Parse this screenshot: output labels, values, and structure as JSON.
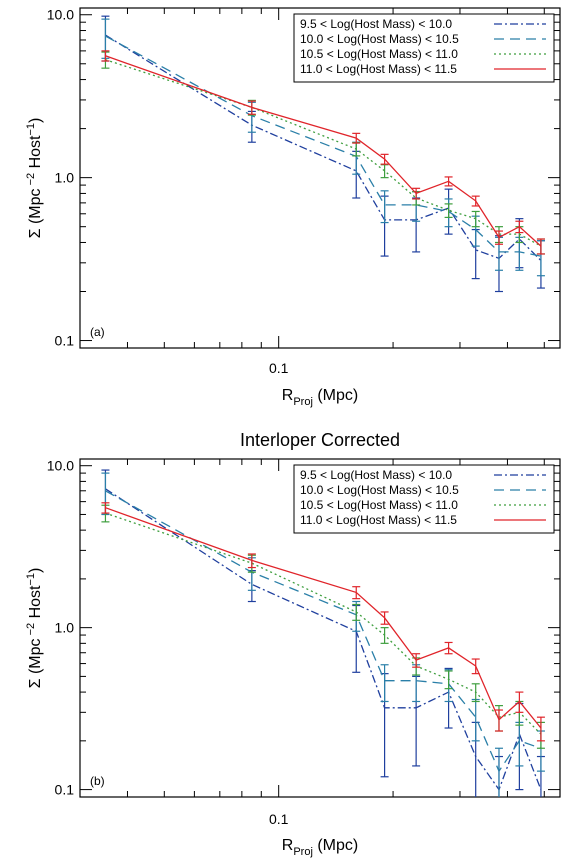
{
  "chart_data": [
    {
      "type": "line",
      "title": "",
      "panel_label": "(a)",
      "xlabel": {
        "main": "R",
        "sub": "Proj",
        "rest": " (Mpc)"
      },
      "ylabel": {
        "main": "Σ (Mpc",
        "sup1": " −2",
        "mid": " Host",
        "sup2": "−1",
        "end": ")"
      },
      "xscale": "log",
      "yscale": "log",
      "xlim": [
        0.03,
        0.55
      ],
      "ylim": [
        0.09,
        11.0
      ],
      "x_ticks": [
        {
          "value": 0.1,
          "label": "0.1"
        }
      ],
      "y_ticks": [
        {
          "value": 0.1,
          "label": "0.1"
        },
        {
          "value": 1.0,
          "label": "1.0"
        },
        {
          "value": 10.0,
          "label": "10.0"
        }
      ],
      "legend_position": "top-right",
      "series": [
        {
          "name": "9.5 < Log(Host Mass) < 10.0",
          "color": "#1f3f9e",
          "dash": "dashdot",
          "x": [
            0.035,
            0.085,
            0.16,
            0.19,
            0.23,
            0.28,
            0.33,
            0.38,
            0.43,
            0.49
          ],
          "y": [
            7.5,
            2.1,
            1.1,
            0.55,
            0.55,
            0.65,
            0.36,
            0.32,
            0.42,
            0.31
          ],
          "err": [
            2.3,
            0.45,
            0.35,
            0.22,
            0.2,
            0.2,
            0.12,
            0.12,
            0.14,
            0.1
          ]
        },
        {
          "name": "10.0 < Log(Host Mass) < 10.5",
          "color": "#2a7fa8",
          "dash": "dashed",
          "x": [
            0.035,
            0.085,
            0.16,
            0.19,
            0.23,
            0.28,
            0.33,
            0.38,
            0.43,
            0.49
          ],
          "y": [
            7.4,
            2.4,
            1.35,
            0.68,
            0.68,
            0.62,
            0.48,
            0.35,
            0.35,
            0.33
          ],
          "err": [
            2.0,
            0.5,
            0.3,
            0.15,
            0.14,
            0.12,
            0.1,
            0.08,
            0.08,
            0.08
          ]
        },
        {
          "name": "10.5 < Log(Host Mass) < 11.0",
          "color": "#3e9e3e",
          "dash": "dotted",
          "x": [
            0.035,
            0.085,
            0.16,
            0.19,
            0.23,
            0.28,
            0.33,
            0.38,
            0.43,
            0.49
          ],
          "y": [
            5.3,
            2.7,
            1.5,
            1.1,
            0.75,
            0.63,
            0.56,
            0.45,
            0.45,
            0.38
          ],
          "err": [
            0.6,
            0.28,
            0.14,
            0.1,
            0.07,
            0.06,
            0.06,
            0.05,
            0.05,
            0.04
          ]
        },
        {
          "name": "11.0 < Log(Host Mass) < 11.5",
          "color": "#e0242a",
          "dash": "solid",
          "x": [
            0.035,
            0.085,
            0.16,
            0.19,
            0.23,
            0.28,
            0.33,
            0.38,
            0.43,
            0.49
          ],
          "y": [
            5.6,
            2.7,
            1.75,
            1.3,
            0.8,
            0.95,
            0.72,
            0.43,
            0.5,
            0.38
          ],
          "err": [
            0.4,
            0.25,
            0.12,
            0.09,
            0.06,
            0.06,
            0.05,
            0.04,
            0.04,
            0.04
          ]
        }
      ]
    },
    {
      "type": "line",
      "title": "Interloper Corrected",
      "panel_label": "(b)",
      "xlabel": {
        "main": "R",
        "sub": "Proj",
        "rest": " (Mpc)"
      },
      "ylabel": {
        "main": "Σ (Mpc",
        "sup1": " −2",
        "mid": " Host",
        "sup2": "−1",
        "end": ")"
      },
      "xscale": "log",
      "yscale": "log",
      "xlim": [
        0.03,
        0.55
      ],
      "ylim": [
        0.09,
        11.0
      ],
      "x_ticks": [
        {
          "value": 0.1,
          "label": "0.1"
        }
      ],
      "y_ticks": [
        {
          "value": 0.1,
          "label": "0.1"
        },
        {
          "value": 1.0,
          "label": "1.0"
        },
        {
          "value": 10.0,
          "label": "10.0"
        }
      ],
      "legend_position": "top-right",
      "series": [
        {
          "name": "9.5 < Log(Host Mass) < 10.0",
          "color": "#1f3f9e",
          "dash": "dashdot",
          "x": [
            0.035,
            0.085,
            0.16,
            0.19,
            0.23,
            0.28,
            0.33,
            0.38,
            0.43,
            0.49
          ],
          "y": [
            7.2,
            1.85,
            0.95,
            0.32,
            0.32,
            0.4,
            0.16,
            0.1,
            0.22,
            0.1
          ],
          "err": [
            2.2,
            0.4,
            0.42,
            0.2,
            0.18,
            0.16,
            0.1,
            0.06,
            0.12,
            0.06
          ]
        },
        {
          "name": "10.0 < Log(Host Mass) < 10.5",
          "color": "#2a7fa8",
          "dash": "dashed",
          "x": [
            0.035,
            0.085,
            0.16,
            0.19,
            0.23,
            0.28,
            0.33,
            0.38,
            0.43,
            0.49
          ],
          "y": [
            7.0,
            2.2,
            1.2,
            0.47,
            0.47,
            0.45,
            0.28,
            0.13,
            0.2,
            0.18
          ],
          "err": [
            2.0,
            0.5,
            0.25,
            0.12,
            0.12,
            0.1,
            0.08,
            0.05,
            0.06,
            0.05
          ]
        },
        {
          "name": "10.5 < Log(Host Mass) < 11.0",
          "color": "#3e9e3e",
          "dash": "dotted",
          "x": [
            0.035,
            0.085,
            0.16,
            0.19,
            0.23,
            0.28,
            0.33,
            0.38,
            0.43,
            0.49
          ],
          "y": [
            5.1,
            2.5,
            1.25,
            0.9,
            0.58,
            0.48,
            0.4,
            0.28,
            0.3,
            0.22
          ],
          "err": [
            0.6,
            0.3,
            0.14,
            0.1,
            0.07,
            0.06,
            0.05,
            0.05,
            0.05,
            0.04
          ]
        },
        {
          "name": "11.0 < Log(Host Mass) < 11.5",
          "color": "#e0242a",
          "dash": "solid",
          "x": [
            0.035,
            0.085,
            0.16,
            0.19,
            0.23,
            0.28,
            0.33,
            0.38,
            0.43,
            0.49
          ],
          "y": [
            5.5,
            2.6,
            1.65,
            1.15,
            0.63,
            0.75,
            0.58,
            0.27,
            0.35,
            0.24
          ],
          "err": [
            0.4,
            0.25,
            0.14,
            0.1,
            0.06,
            0.06,
            0.06,
            0.04,
            0.05,
            0.04
          ]
        }
      ]
    }
  ]
}
